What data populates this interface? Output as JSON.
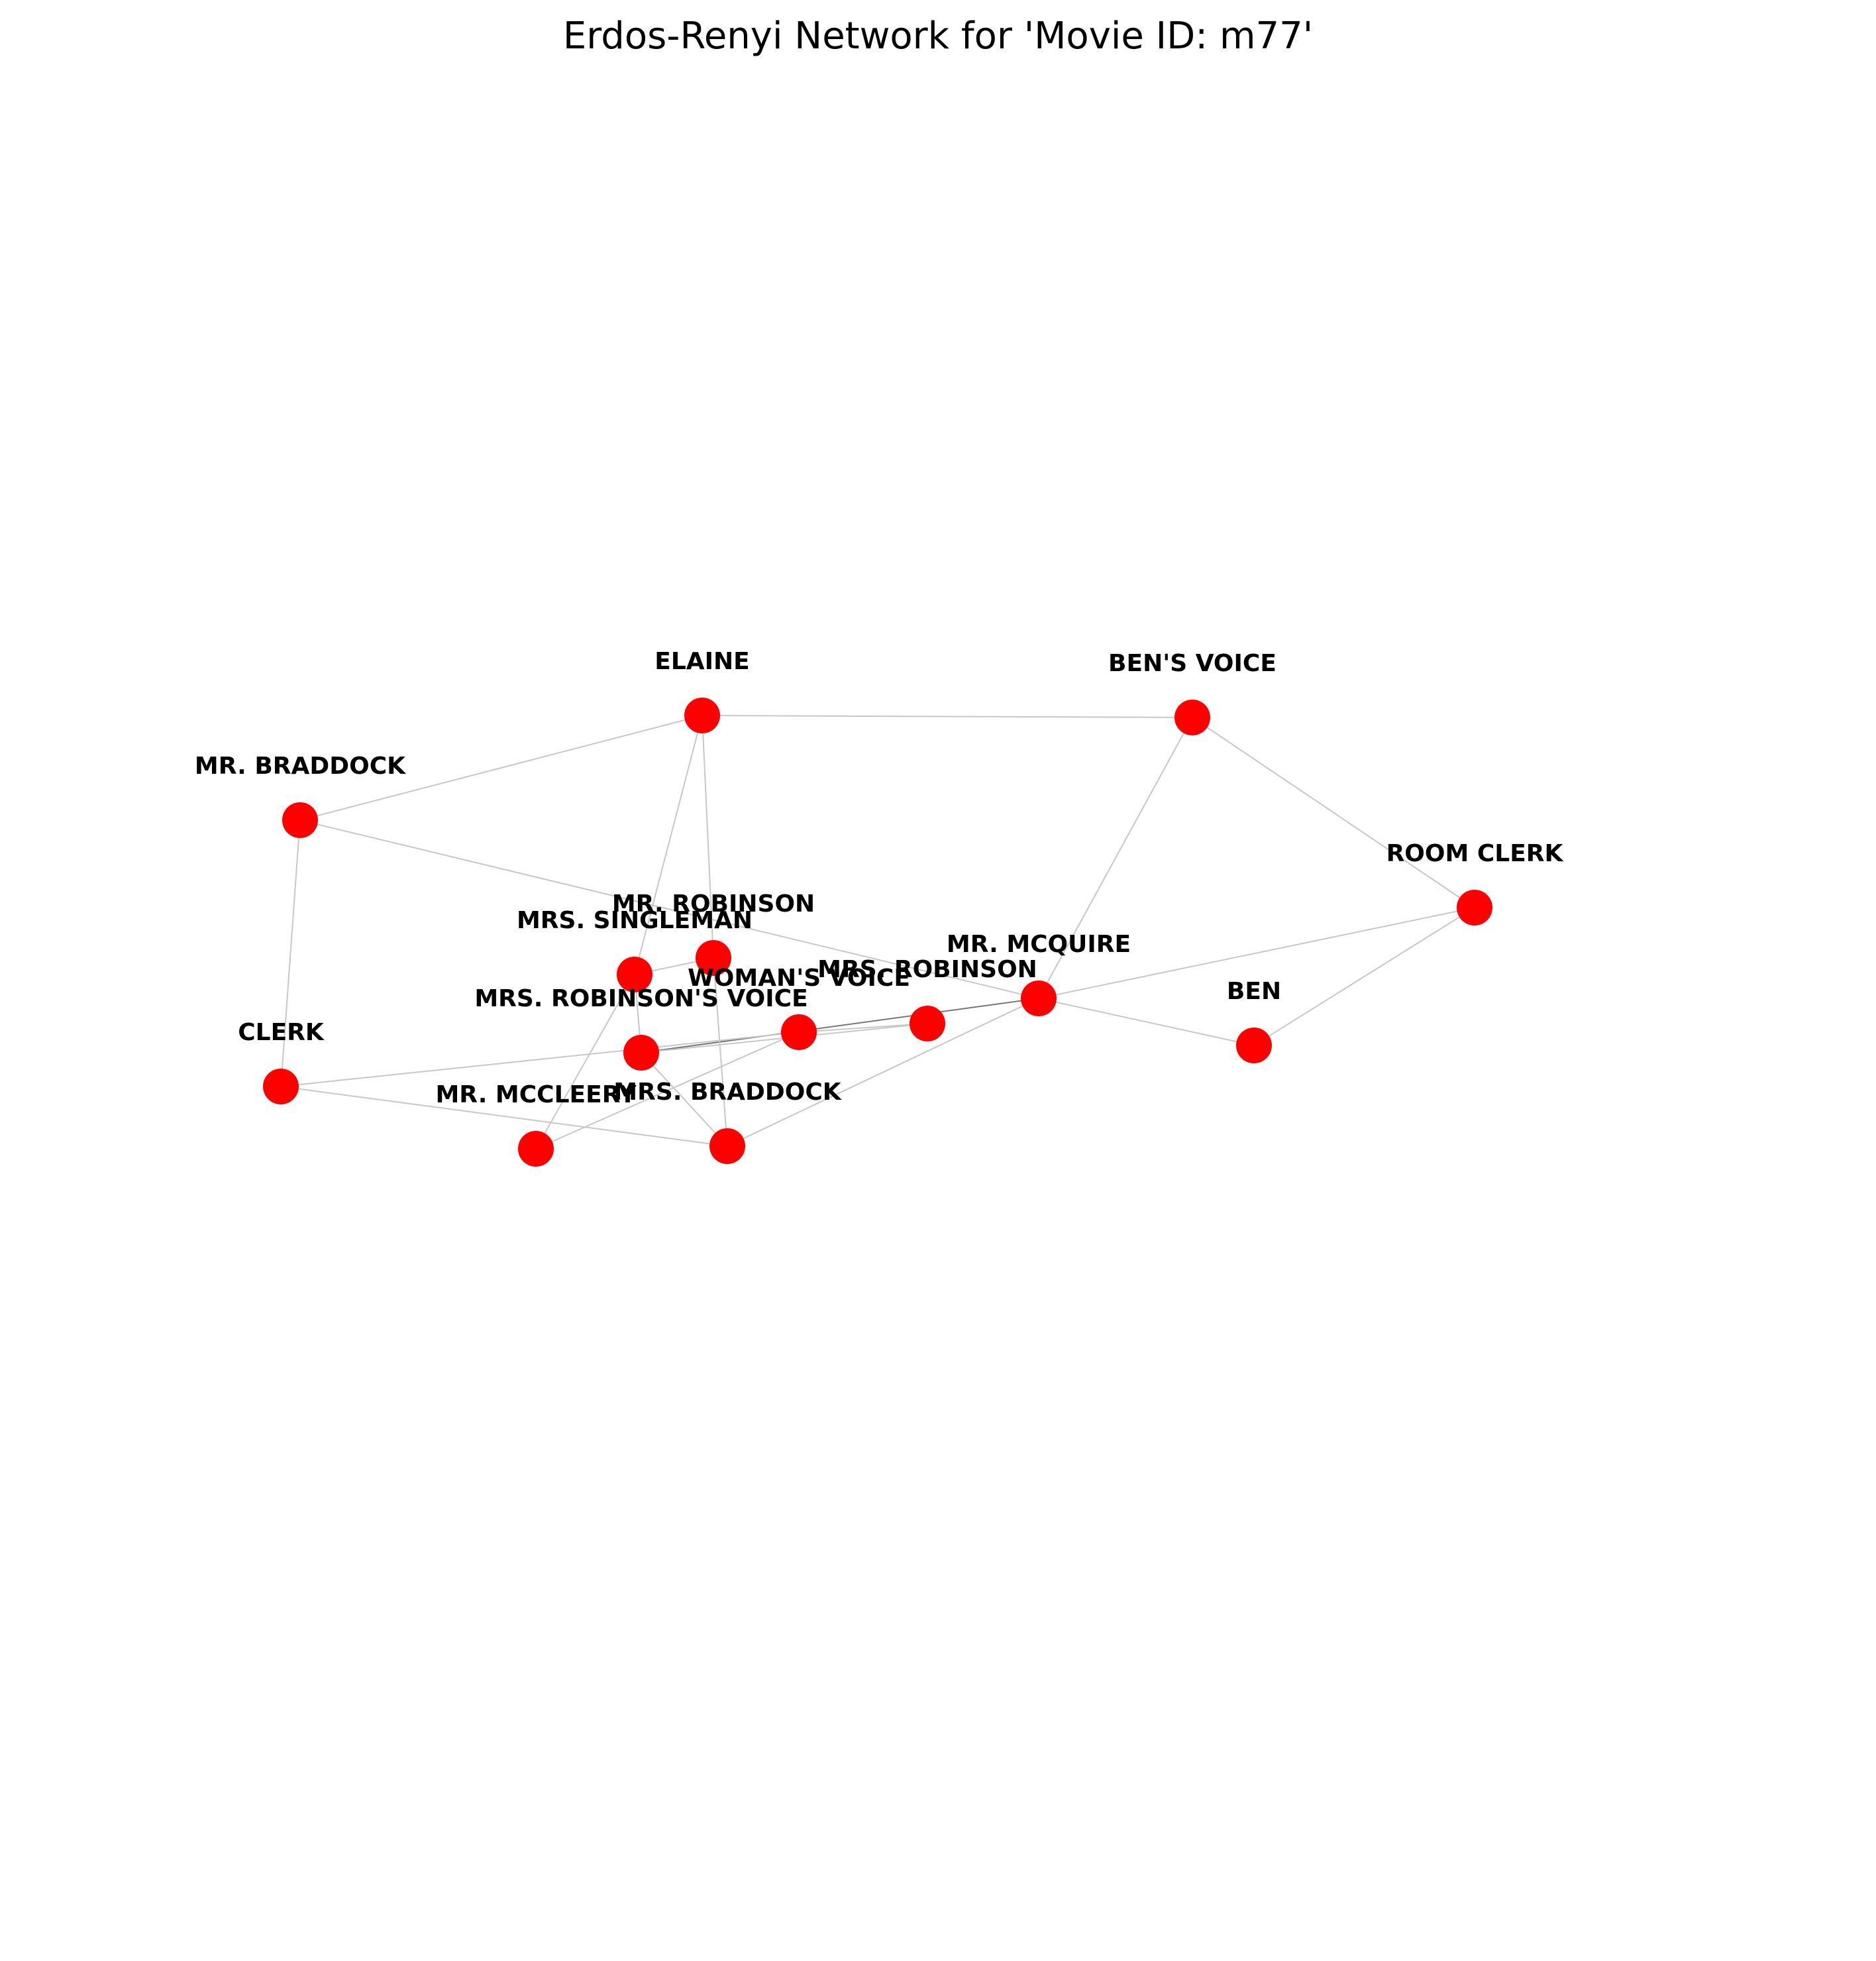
{
  "title": "Erdos-Renyi Network for 'Movie ID: m77'",
  "colors": {
    "node": "#ff0000",
    "edge": "#c8c8c8",
    "edge_strong": "#777777",
    "label": "#000000",
    "background": "#ffffff"
  },
  "nodes": [
    {
      "id": "elaine",
      "label": "ELAINE"
    },
    {
      "id": "bens_voice",
      "label": "BEN'S VOICE"
    },
    {
      "id": "mr_braddock",
      "label": "MR. BRADDOCK"
    },
    {
      "id": "room_clerk",
      "label": "ROOM CLERK"
    },
    {
      "id": "mr_robinson",
      "label": "MR. ROBINSON"
    },
    {
      "id": "mrs_singleman",
      "label": "MRS. SINGLEMAN"
    },
    {
      "id": "mr_mcquire",
      "label": "MR. MCQUIRE"
    },
    {
      "id": "mrs_robinson",
      "label": "MRS. ROBINSON"
    },
    {
      "id": "womans_voice",
      "label": "WOMAN'S VOICE"
    },
    {
      "id": "ben",
      "label": "BEN"
    },
    {
      "id": "mrs_robinsons_voice",
      "label": "MRS. ROBINSON'S VOICE"
    },
    {
      "id": "clerk",
      "label": "CLERK"
    },
    {
      "id": "mr_mccleery",
      "label": "MR. MCCLEERY"
    },
    {
      "id": "mrs_braddock",
      "label": "MRS. BRADDOCK"
    }
  ],
  "edges": [
    {
      "source": "elaine",
      "target": "bens_voice"
    },
    {
      "source": "elaine",
      "target": "mr_braddock"
    },
    {
      "source": "elaine",
      "target": "mr_robinson"
    },
    {
      "source": "elaine",
      "target": "mrs_singleman"
    },
    {
      "source": "mr_braddock",
      "target": "clerk"
    },
    {
      "source": "mr_braddock",
      "target": "mr_mcquire"
    },
    {
      "source": "bens_voice",
      "target": "room_clerk"
    },
    {
      "source": "bens_voice",
      "target": "mr_mcquire"
    },
    {
      "source": "room_clerk",
      "target": "mr_mcquire"
    },
    {
      "source": "room_clerk",
      "target": "ben"
    },
    {
      "source": "mr_mcquire",
      "target": "ben"
    },
    {
      "source": "mr_mcquire",
      "target": "mrs_braddock"
    },
    {
      "source": "mr_mcquire",
      "target": "mrs_robinsons_voice",
      "strong": true
    },
    {
      "source": "mr_robinson",
      "target": "mrs_braddock"
    },
    {
      "source": "mr_robinson",
      "target": "mrs_singleman"
    },
    {
      "source": "mrs_singleman",
      "target": "mrs_robinsons_voice"
    },
    {
      "source": "mrs_singleman",
      "target": "mr_mccleery"
    },
    {
      "source": "mrs_robinsons_voice",
      "target": "mrs_braddock"
    },
    {
      "source": "mrs_robinsons_voice",
      "target": "mrs_robinson"
    },
    {
      "source": "womans_voice",
      "target": "mrs_robinson"
    },
    {
      "source": "womans_voice",
      "target": "mr_mccleery"
    },
    {
      "source": "clerk",
      "target": "womans_voice"
    },
    {
      "source": "clerk",
      "target": "mrs_braddock"
    }
  ]
}
